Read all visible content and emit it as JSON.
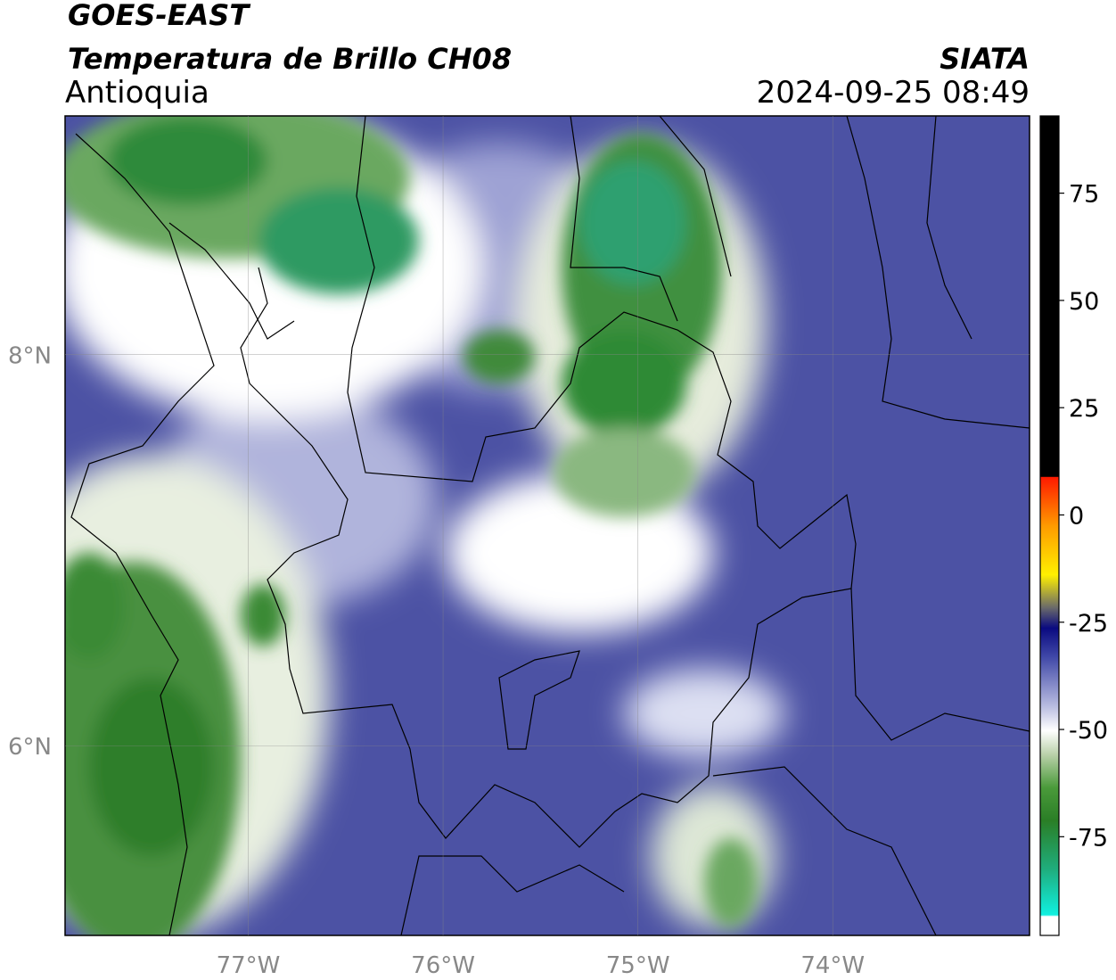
{
  "header": {
    "title": "GOES-EAST",
    "subtitle": "Temperatura de Brillo CH08",
    "region": "Antioquia",
    "source": "SIATA",
    "datetime": "2024-09-25 08:49"
  },
  "map": {
    "lonlim": [
      -77.94,
      -72.99
    ],
    "latlim": [
      5.03,
      9.22
    ],
    "lon_ticks": [
      {
        "value": -77,
        "label": "77°W"
      },
      {
        "value": -76,
        "label": "76°W"
      },
      {
        "value": -75,
        "label": "75°W"
      },
      {
        "value": -74,
        "label": "74°W"
      }
    ],
    "lat_ticks": [
      {
        "value": 8,
        "label": "8°N"
      },
      {
        "value": 6,
        "label": "6°N"
      }
    ]
  },
  "colorbar": {
    "lim": [
      -98,
      93
    ],
    "ticks": [
      75,
      50,
      25,
      0,
      -25,
      -50,
      -75
    ]
  }
}
